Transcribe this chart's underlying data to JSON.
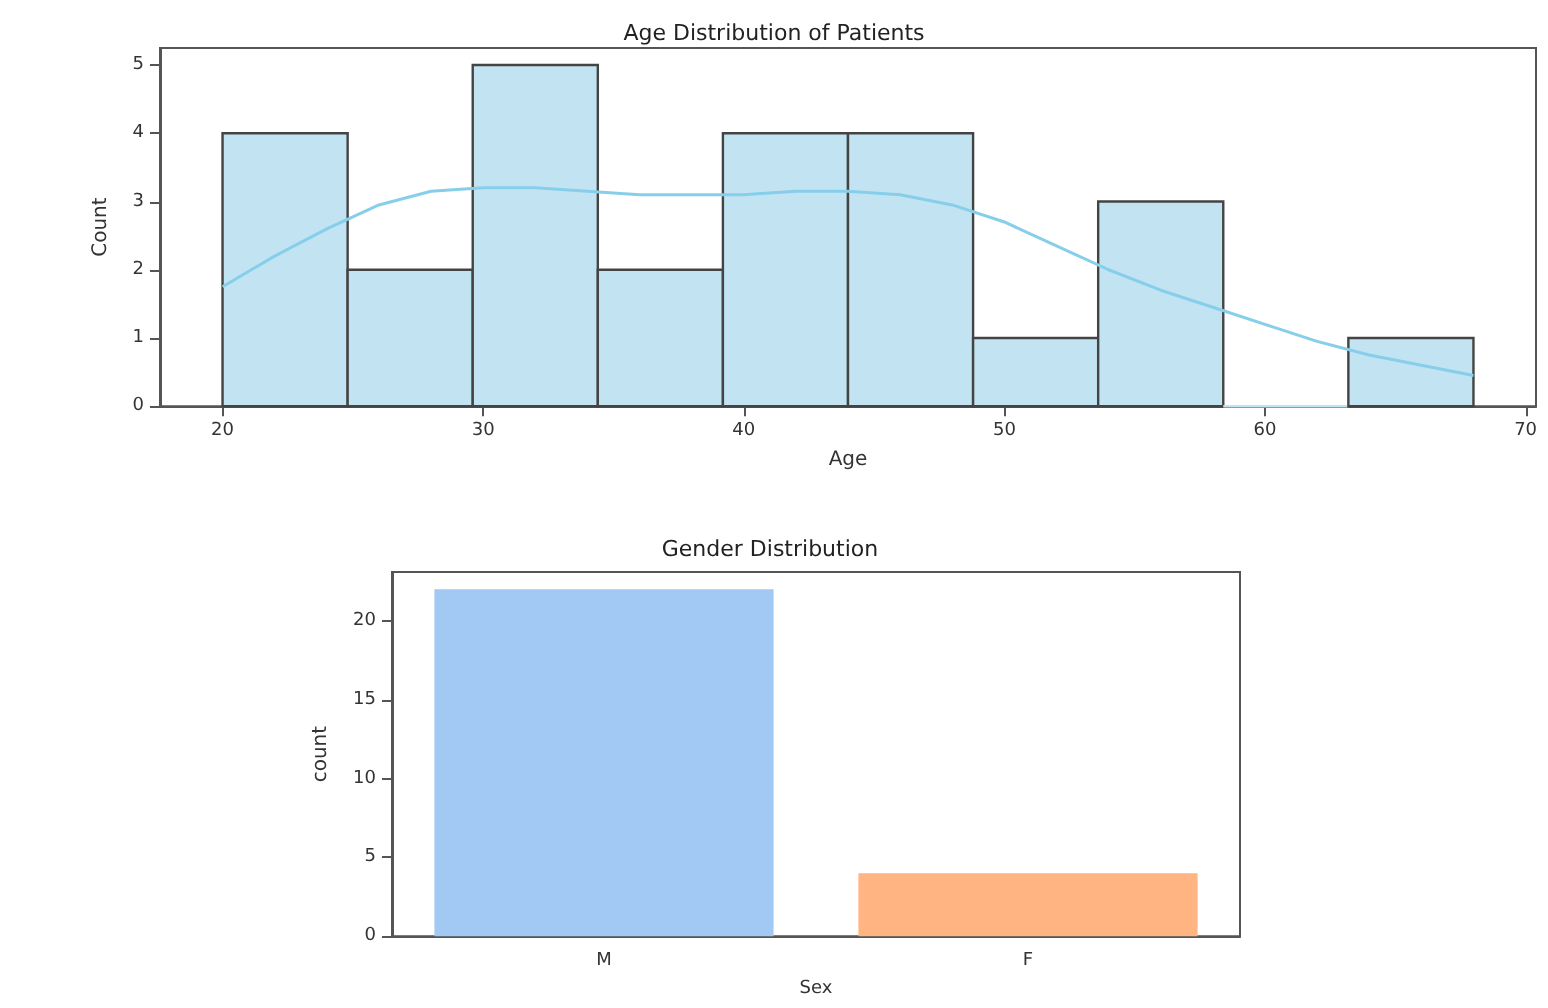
{
  "chart_data": [
    {
      "type": "histogram",
      "title": "Age Distribution of Patients",
      "xlabel": "Age",
      "ylabel": "Count",
      "bins": [
        20,
        24.8,
        29.6,
        34.4,
        39.2,
        44,
        48.8,
        53.6,
        58.4,
        63.2,
        68
      ],
      "series": [
        {
          "type": "histogram",
          "color": "#c2e4f2",
          "values": [
            4,
            2,
            5,
            2,
            4,
            4,
            1,
            3,
            0,
            1
          ]
        },
        {
          "type": "line",
          "color": "#87ceeb",
          "x": [
            20,
            22,
            24,
            26,
            28,
            30,
            32,
            34,
            36,
            38,
            40,
            42,
            44,
            46,
            48,
            50,
            52,
            54,
            56,
            58,
            60,
            62,
            64,
            66,
            68
          ],
          "values": [
            1.75,
            2.2,
            2.6,
            2.95,
            3.15,
            3.2,
            3.2,
            3.15,
            3.1,
            3.1,
            3.1,
            3.15,
            3.15,
            3.1,
            2.95,
            2.7,
            2.35,
            2.0,
            1.7,
            1.45,
            1.2,
            0.95,
            0.75,
            0.6,
            0.45
          ]
        }
      ],
      "xlim": [
        17.6,
        70.4
      ],
      "xticks": [
        20,
        30,
        40,
        50,
        60,
        70
      ],
      "ylim": [
        0,
        5.25
      ],
      "yticks": [
        0,
        1,
        2,
        3,
        4,
        5
      ],
      "grid": false
    },
    {
      "type": "bar",
      "title": "Gender Distribution",
      "xlabel": "Sex",
      "ylabel": "count",
      "categories": [
        "M",
        "F"
      ],
      "values": [
        22,
        4
      ],
      "colors": [
        "#a1c9f4",
        "#ffb482"
      ],
      "ylim": [
        0,
        23.1
      ],
      "yticks": [
        0,
        5,
        10,
        15,
        20
      ],
      "grid": false
    }
  ]
}
